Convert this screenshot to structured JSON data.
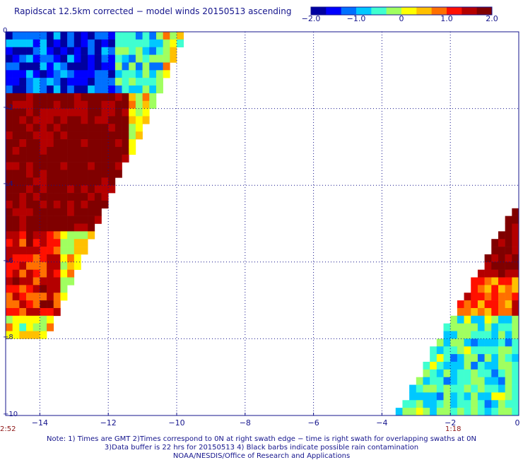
{
  "title": "Rapidscat 12.5km corrected − model winds 20150513 ascending",
  "colorbar": {
    "labels": [
      "−2.0",
      "−1.0",
      "0",
      "1.0",
      "2.0"
    ],
    "range": [
      -2.0,
      2.0
    ],
    "colors": [
      "#0000a0",
      "#0000ff",
      "#0070ff",
      "#00c8ff",
      "#40ffd0",
      "#a0ff60",
      "#ffff00",
      "#ffc000",
      "#ff7000",
      "#ff1000",
      "#b40000",
      "#800000"
    ]
  },
  "chart_data": {
    "type": "heatmap",
    "title": "Rapidscat 12.5km corrected − model winds 20150513 ascending",
    "xlabel": "",
    "ylabel": "",
    "xlim": [
      -15,
      0
    ],
    "ylim": [
      -10,
      0
    ],
    "x_ticks": [
      "−14",
      "−12",
      "−10",
      "−8",
      "−6",
      "−4",
      "−2",
      "0"
    ],
    "y_ticks": [
      "0",
      "−2",
      "−4",
      "−6",
      "−8",
      "−10"
    ],
    "grid": true,
    "swaths": [
      {
        "name": "left",
        "time_label": "2:52",
        "edge": [
          [
            -15,
            0.05
          ],
          [
            -9.65,
            0.05
          ],
          [
            -13.9,
            -8.1
          ],
          [
            -15,
            -8.1
          ]
        ],
        "regions": [
          {
            "x": [
              -15,
              -11.9
            ],
            "y": [
              0,
              -1.6
            ],
            "value": -1.4
          },
          {
            "x": [
              -12.6,
              -10.5
            ],
            "y": [
              -0.1,
              -1.6
            ],
            "value": -0.6
          },
          {
            "x": [
              -15,
              -11.5
            ],
            "y": [
              -1.6,
              -5.2
            ],
            "value": 1.9
          },
          {
            "x": [
              -15,
              -13.5
            ],
            "y": [
              -5.2,
              -7.5
            ],
            "value": 1.2
          },
          {
            "x": [
              -15,
              -14.2
            ],
            "y": [
              -7.5,
              -8.1
            ],
            "value": 0.2
          }
        ]
      },
      {
        "name": "right",
        "time_label": "1:18",
        "edge": [
          [
            0,
            -4.4
          ],
          [
            0,
            -10
          ],
          [
            -3.6,
            -10
          ]
        ],
        "regions": [
          {
            "x": [
              -1.8,
              0
            ],
            "y": [
              -4.4,
              -6.5
            ],
            "value": 1.9
          },
          {
            "x": [
              -2.5,
              0
            ],
            "y": [
              -6.5,
              -7.4
            ],
            "value": 1.0
          },
          {
            "x": [
              -3.6,
              0
            ],
            "y": [
              -7.4,
              -10
            ],
            "value": -0.5
          }
        ]
      }
    ]
  },
  "notes": [
    "Note: 1) Times are GMT 2)Times correspond to 0N at right swath edge − time is right swath for overlapping swaths at 0N",
    "3)Data buffer is 22 hrs for 20150513 4) Black barbs indicate possible rain contamination",
    "NOAA/NESDIS/Office of Research and Applications"
  ]
}
